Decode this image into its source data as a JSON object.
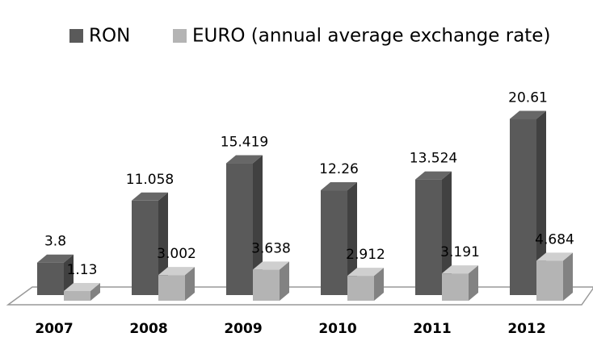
{
  "chart_data": {
    "type": "bar3d",
    "categories": [
      "2007",
      "2008",
      "2009",
      "2010",
      "2011",
      "2012"
    ],
    "series": [
      {
        "name": "RON",
        "color": "#5a5a5a",
        "values": [
          3.8,
          11.058,
          15.419,
          12.26,
          13.524,
          20.61
        ]
      },
      {
        "name": "EURO (annual average exchange rate)",
        "color": "#b4b4b4",
        "values": [
          1.13,
          3.002,
          3.638,
          2.912,
          3.191,
          4.684
        ]
      }
    ]
  }
}
